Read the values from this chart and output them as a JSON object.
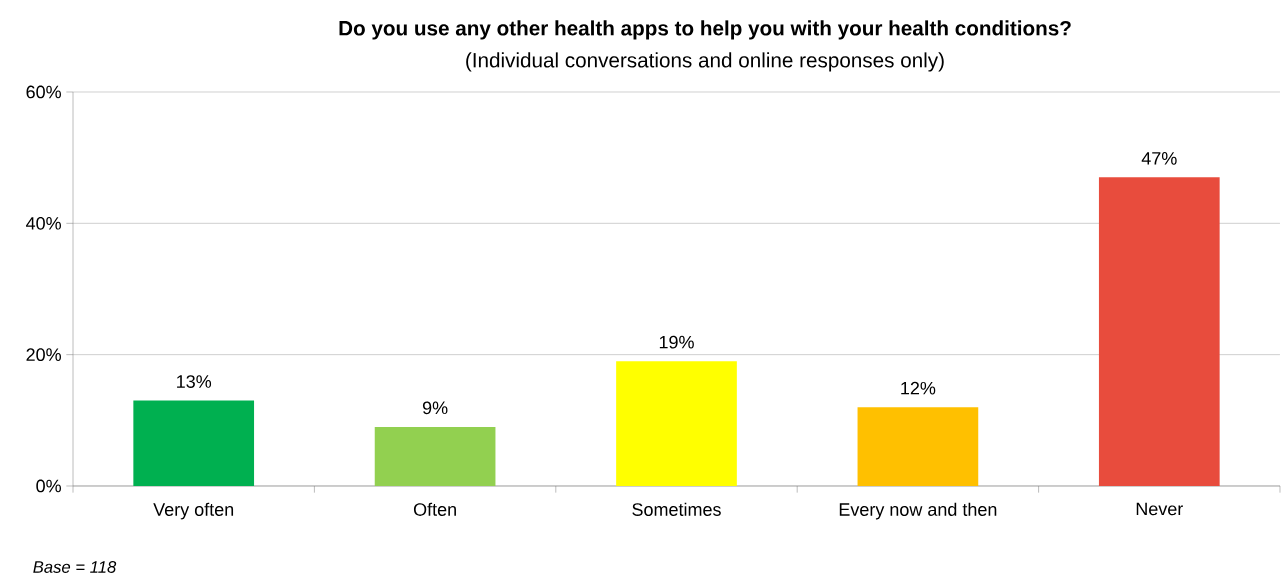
{
  "chart_data": {
    "type": "bar",
    "title": "Do you use any other health apps to help you with your health conditions?",
    "subtitle": "(Individual conversations and online responses only)",
    "categories": [
      "Very often",
      "Often",
      "Sometimes",
      "Every now and then",
      "Never"
    ],
    "values": [
      13,
      9,
      19,
      12,
      47
    ],
    "value_labels": [
      "13%",
      "9%",
      "19%",
      "12%",
      "47%"
    ],
    "colors": [
      "#00b050",
      "#92d050",
      "#ffff00",
      "#ffc000",
      "#e84c3d"
    ],
    "ylim": [
      0,
      60
    ],
    "yticks": [
      {
        "value": 0,
        "label": "0%"
      },
      {
        "value": 20,
        "label": "20%"
      },
      {
        "value": 40,
        "label": "40%"
      },
      {
        "value": 60,
        "label": "60%"
      }
    ],
    "grid": "y",
    "annotations": [
      "Base = 118"
    ]
  }
}
